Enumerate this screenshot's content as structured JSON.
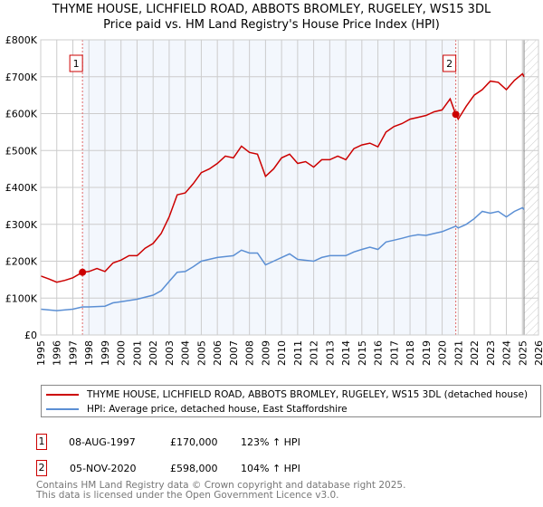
{
  "chart_data": {
    "type": "line",
    "title": "THYME HOUSE, LICHFIELD ROAD, ABBOTS BROMLEY, RUGELEY, WS15 3DL",
    "subtitle": "Price paid vs. HM Land Registry's House Price Index (HPI)",
    "xlim": [
      1995,
      2026
    ],
    "ylim": [
      0,
      800000
    ],
    "x_ticks": [
      "1995",
      "1996",
      "1997",
      "1998",
      "1999",
      "2000",
      "2001",
      "2002",
      "2003",
      "2004",
      "2005",
      "2006",
      "2007",
      "2008",
      "2009",
      "2010",
      "2011",
      "2012",
      "2013",
      "2014",
      "2015",
      "2016",
      "2017",
      "2018",
      "2019",
      "2020",
      "2021",
      "2022",
      "2023",
      "2024",
      "2025",
      "2026"
    ],
    "y_ticks": [
      {
        "v": 0,
        "label": "£0"
      },
      {
        "v": 100000,
        "label": "£100K"
      },
      {
        "v": 200000,
        "label": "£200K"
      },
      {
        "v": 300000,
        "label": "£300K"
      },
      {
        "v": 400000,
        "label": "£400K"
      },
      {
        "v": 500000,
        "label": "£500K"
      },
      {
        "v": 600000,
        "label": "£600K"
      },
      {
        "v": 700000,
        "label": "£700K"
      },
      {
        "v": 800000,
        "label": "£800K"
      }
    ],
    "grid": true,
    "shaded_range": [
      1997.6,
      2020.85
    ],
    "forecast_hatch_from": 2025.1,
    "series": [
      {
        "name": "THYME HOUSE, LICHFIELD ROAD, ABBOTS BROMLEY, RUGELEY, WS15 3DL (detached house)",
        "color": "#cc0000",
        "x": [
          1995,
          1995.5,
          1996,
          1996.5,
          1997,
          1997.6,
          1998,
          1998.5,
          1999,
          1999.5,
          2000,
          2000.5,
          2001,
          2001.5,
          2002,
          2002.5,
          2003,
          2003.5,
          2004,
          2004.5,
          2005,
          2005.5,
          2006,
          2006.5,
          2007,
          2007.5,
          2008,
          2008.5,
          2009,
          2009.5,
          2010,
          2010.5,
          2011,
          2011.5,
          2012,
          2012.5,
          2013,
          2013.5,
          2014,
          2014.5,
          2015,
          2015.5,
          2016,
          2016.5,
          2017,
          2017.5,
          2018,
          2018.5,
          2019,
          2019.5,
          2020,
          2020.5,
          2020.85,
          2021,
          2021.5,
          2022,
          2022.5,
          2023,
          2023.5,
          2024,
          2024.5,
          2025,
          2025.1
        ],
        "y": [
          160000,
          152000,
          143000,
          148000,
          155000,
          170000,
          172000,
          180000,
          172000,
          195000,
          203000,
          215000,
          215000,
          235000,
          248000,
          275000,
          320000,
          380000,
          385000,
          410000,
          440000,
          450000,
          465000,
          485000,
          480000,
          512000,
          495000,
          490000,
          430000,
          450000,
          480000,
          490000,
          465000,
          470000,
          455000,
          475000,
          475000,
          485000,
          475000,
          505000,
          515000,
          520000,
          510000,
          550000,
          565000,
          573000,
          585000,
          590000,
          595000,
          605000,
          610000,
          640000,
          598000,
          585000,
          620000,
          650000,
          665000,
          688000,
          685000,
          665000,
          690000,
          708000,
          700000
        ]
      },
      {
        "name": "HPI: Average price, detached house, East Staffordshire",
        "color": "#5b8fd4",
        "x": [
          1995,
          1996,
          1997,
          1997.6,
          1998,
          1999,
          1999.5,
          2000,
          2001,
          2002,
          2002.5,
          2003,
          2003.5,
          2004,
          2004.5,
          2005,
          2006,
          2007,
          2007.5,
          2008,
          2008.5,
          2009,
          2009.5,
          2010,
          2010.5,
          2011,
          2012,
          2012.5,
          2013,
          2014,
          2014.5,
          2015,
          2015.5,
          2016,
          2016.5,
          2017,
          2017.5,
          2018,
          2018.5,
          2019,
          2019.5,
          2020,
          2020.85,
          2021,
          2021.5,
          2022,
          2022.5,
          2023,
          2023.5,
          2024,
          2024.5,
          2025,
          2025.1
        ],
        "y": [
          70000,
          66000,
          70000,
          76000,
          76000,
          78000,
          87000,
          90000,
          97000,
          108000,
          120000,
          145000,
          170000,
          172000,
          185000,
          200000,
          210000,
          215000,
          230000,
          222000,
          222000,
          190000,
          200000,
          210000,
          220000,
          205000,
          200000,
          210000,
          215000,
          215000,
          225000,
          232000,
          238000,
          232000,
          252000,
          257000,
          262000,
          268000,
          272000,
          270000,
          275000,
          280000,
          295000,
          290000,
          300000,
          315000,
          335000,
          330000,
          335000,
          320000,
          335000,
          345000,
          340000
        ]
      }
    ],
    "sales": [
      {
        "id": "1",
        "x": 1997.6,
        "y": 170000,
        "date": "08-AUG-1997",
        "price": "£170,000",
        "hpi": "123% ↑ HPI"
      },
      {
        "id": "2",
        "x": 2020.85,
        "y": 598000,
        "date": "05-NOV-2020",
        "price": "£598,000",
        "hpi": "104% ↑ HPI"
      }
    ]
  },
  "footer": [
    "Contains HM Land Registry data © Crown copyright and database right 2025.",
    "This data is licensed under the Open Government Licence v3.0."
  ]
}
